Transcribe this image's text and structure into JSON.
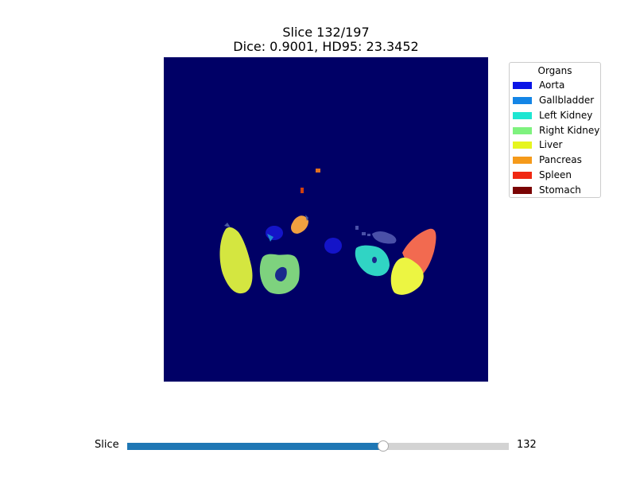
{
  "title": {
    "line1": "Slice 132/197",
    "line2": "Dice: 0.9001, HD95: 23.3452"
  },
  "legend": {
    "title": "Organs",
    "items": [
      {
        "label": "Aorta",
        "color": "#0a14e6"
      },
      {
        "label": "Gallbladder",
        "color": "#1485e6"
      },
      {
        "label": "Left Kidney",
        "color": "#1ee6d2"
      },
      {
        "label": "Right Kidney",
        "color": "#7ef27e"
      },
      {
        "label": "Liver",
        "color": "#e6f51e"
      },
      {
        "label": "Pancreas",
        "color": "#f59a1a"
      },
      {
        "label": "Spleen",
        "color": "#f02812"
      },
      {
        "label": "Stomach",
        "color": "#7a0404"
      }
    ]
  },
  "slider": {
    "label": "Slice",
    "value": 132,
    "min": 0,
    "max": 197,
    "value_text": "132",
    "fill_color": "#1f77b4"
  },
  "view": {
    "background_color": "#000066"
  }
}
